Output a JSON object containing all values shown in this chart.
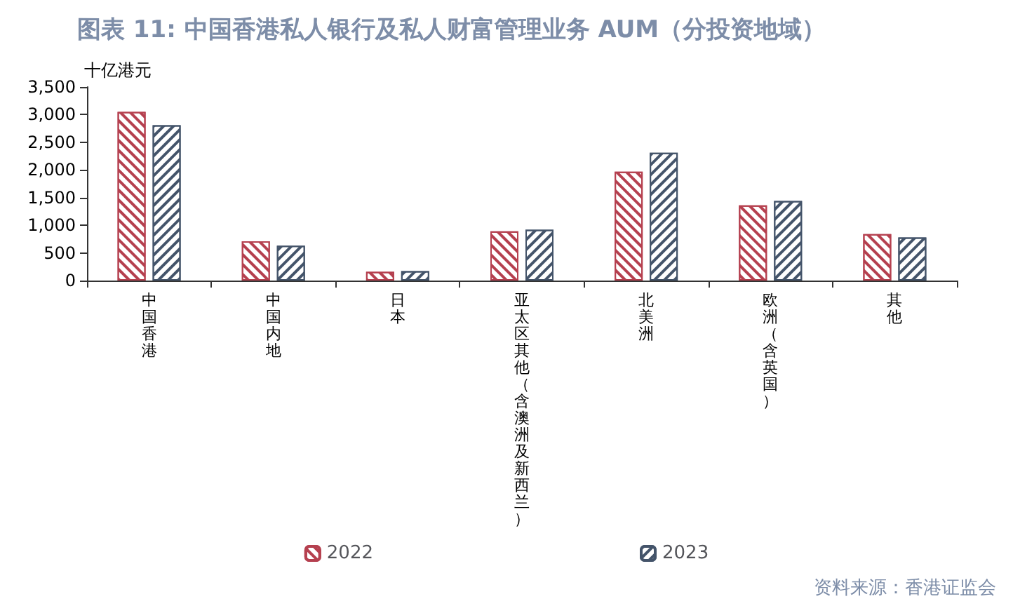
{
  "chart_data": {
    "type": "bar",
    "title": "图表 11: 中国香港私人银行及私人财富管理业务 AUM（分投资地域）",
    "ylabel": "十亿港元",
    "categories": [
      "中国香港",
      "中国内地",
      "日本",
      "亚太区其他（含澳洲及新西兰）",
      "北美洲",
      "欧洲（含英国）",
      "其他"
    ],
    "series": [
      {
        "name": "2022",
        "color": "#b5404f",
        "values": [
          3050,
          710,
          160,
          890,
          1970,
          1360,
          840
        ]
      },
      {
        "name": "2023",
        "color": "#44546a",
        "values": [
          2810,
          630,
          170,
          920,
          2310,
          1440,
          780
        ]
      }
    ],
    "ylim": [
      0,
      3500
    ],
    "yticks": [
      0,
      500,
      {
        "value": 1000,
        "label": "1,000"
      },
      {
        "value": 1500,
        "label": "1,500"
      },
      {
        "value": 2000,
        "label": "2,000"
      },
      {
        "value": 2500,
        "label": "2,500"
      },
      {
        "value": 3000,
        "label": "3,000"
      },
      {
        "value": 3500,
        "label": "3,500"
      }
    ],
    "grid": false,
    "legend": "bottom",
    "annotations": [
      "资料来源：香港证监会"
    ]
  }
}
